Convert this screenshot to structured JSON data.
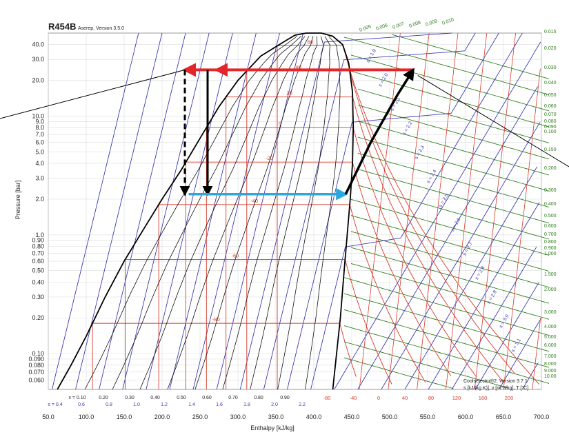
{
  "chart_data": {
    "type": "line",
    "title": "R454B",
    "subtitle": "Aserep, Version 3.5.0",
    "xlabel": "Enthalpy [kJ/kg]",
    "ylabel": "Pressure [bar]",
    "xlim": [
      50,
      700
    ],
    "ylim": [
      0.05,
      50
    ],
    "y_scale": "log",
    "x_ticks": [
      "50.0",
      "100.0",
      "150.0",
      "200.0",
      "250.0",
      "300.0",
      "350.0",
      "400.0",
      "450.0",
      "500.0",
      "550.0",
      "600.0",
      "650.0",
      "700.0"
    ],
    "y_ticks": [
      "40.0",
      "30.0",
      "20.0",
      "10.0",
      "9.0",
      "8.0",
      "7.0",
      "6.0",
      "5.0",
      "4.0",
      "3.0",
      "2.0",
      "1.0",
      "0.90",
      "0.80",
      "0.70",
      "0.60",
      "0.50",
      "0.40",
      "0.30",
      "0.20",
      "0.10",
      "0.090",
      "0.080",
      "0.070",
      "0.060"
    ],
    "isotherm_labels_dome": [
      "60",
      "40",
      "20",
      "0",
      "-20",
      "-40",
      "-60",
      "-80"
    ],
    "isotherm_labels_bottom": [
      "-80",
      "-40",
      "0",
      "40",
      "80",
      "120",
      "160",
      "200"
    ],
    "quality_labels": [
      "x = 0.10",
      "0.20",
      "0.30",
      "0.40",
      "0.50",
      "0.60",
      "0.70",
      "0.80",
      "0.90"
    ],
    "entropy_bottom_labels": [
      "s = 0.4",
      "0.6",
      "0.8",
      "1.0",
      "1.2",
      "1.4",
      "1.6",
      "1.8",
      "2.0",
      "2.2"
    ],
    "entropy_labels": [
      "s = 1.9",
      "s = 2.0",
      "s = 2.1",
      "s = 2.2",
      "s = 2.3",
      "s = 2.4",
      "s = 2.5",
      "s = 2.6",
      "s = 2.7",
      "s = 2.8",
      "s = 2.9",
      "s = 3.0",
      "s = 3.1"
    ],
    "volume_top_labels": [
      "0.005",
      "0.006",
      "0.007",
      "0.008",
      "0.009",
      "0.010"
    ],
    "volume_right_labels": [
      "0.015",
      "0.020",
      "0.030",
      "0.040",
      "0.050",
      "0.060",
      "0.070",
      "0.080",
      "0.090",
      "0.100",
      "0.150",
      "0.200",
      "0.300",
      "0.400",
      "0.500",
      "0.600",
      "0.700",
      "0.800",
      "0.900",
      "1.000",
      "1.500",
      "2.000",
      "3.000",
      "4.000",
      "5.000",
      "6.000",
      "7.000",
      "8.000",
      "9.000",
      "10.00"
    ],
    "footnote_line1": "Coolselector®2. Version 3.7.1",
    "footnote_line2": "s [kJ/(kg K)], v [m^3/kg], T [°C]",
    "saturation_liquid": [
      {
        "h": 62,
        "p": 0.05
      },
      {
        "h": 80,
        "p": 0.08
      },
      {
        "h": 100,
        "p": 0.14
      },
      {
        "h": 125,
        "p": 0.3
      },
      {
        "h": 150,
        "p": 0.6
      },
      {
        "h": 175,
        "p": 1.1
      },
      {
        "h": 200,
        "p": 2.0
      },
      {
        "h": 225,
        "p": 3.5
      },
      {
        "h": 250,
        "p": 6.5
      },
      {
        "h": 275,
        "p": 12
      },
      {
        "h": 300,
        "p": 20
      },
      {
        "h": 330,
        "p": 32
      },
      {
        "h": 360,
        "p": 42
      },
      {
        "h": 375,
        "p": 48
      }
    ],
    "saturation_vapor": [
      {
        "h": 425,
        "p": 0.05
      },
      {
        "h": 430,
        "p": 0.1
      },
      {
        "h": 435,
        "p": 0.2
      },
      {
        "h": 440,
        "p": 0.5
      },
      {
        "h": 444,
        "p": 1.0
      },
      {
        "h": 448,
        "p": 2.0
      },
      {
        "h": 451,
        "p": 4.0
      },
      {
        "h": 452,
        "p": 8.0
      },
      {
        "h": 451,
        "p": 16
      },
      {
        "h": 446,
        "p": 28
      },
      {
        "h": 438,
        "p": 40
      },
      {
        "h": 425,
        "p": 47
      },
      {
        "h": 410,
        "p": 50
      },
      {
        "h": 390,
        "p": 50
      },
      {
        "h": 375,
        "p": 48
      }
    ],
    "isotherm_pressures": [
      {
        "label": "60",
        "p": 39
      },
      {
        "label": "40",
        "p": 24
      },
      {
        "label": "20",
        "p": 14.5
      },
      {
        "label": "0",
        "p": 8.0
      },
      {
        "label": "-20",
        "p": 4.1
      },
      {
        "label": "-40",
        "p": 1.8
      },
      {
        "label": "-60",
        "p": 0.62
      },
      {
        "label": "-80",
        "p": 0.18
      }
    ],
    "cycle": {
      "condenser": [
        {
          "h": 531,
          "p": 24.5
        },
        {
          "h": 272,
          "p": 24.5
        }
      ],
      "condenser_extension": [
        {
          "h": 272,
          "p": 24.5
        },
        {
          "h": 230,
          "p": 24.5
        }
      ],
      "expansion_dashed": [
        {
          "h": 230,
          "p": 24.5
        },
        {
          "h": 230,
          "p": 2.2
        }
      ],
      "expansion_solid": [
        {
          "h": 260,
          "p": 24.5
        },
        {
          "h": 260,
          "p": 2.2
        }
      ],
      "evaporator": [
        {
          "h": 235,
          "p": 2.2
        },
        {
          "h": 442,
          "p": 2.2
        }
      ],
      "compressor": [
        {
          "h": 442,
          "p": 2.2
        },
        {
          "h": 475,
          "p": 6
        },
        {
          "h": 510,
          "p": 15
        },
        {
          "h": 531,
          "p": 24.5
        }
      ]
    },
    "colors": {
      "condenser": "#e3262a",
      "evaporator": "#2aa7de",
      "compression": "#000000",
      "isotherm": "#d43a2a",
      "isentrope": "#3a3ab0",
      "isochore": "#2e7d1c",
      "quality": "#000000"
    }
  }
}
